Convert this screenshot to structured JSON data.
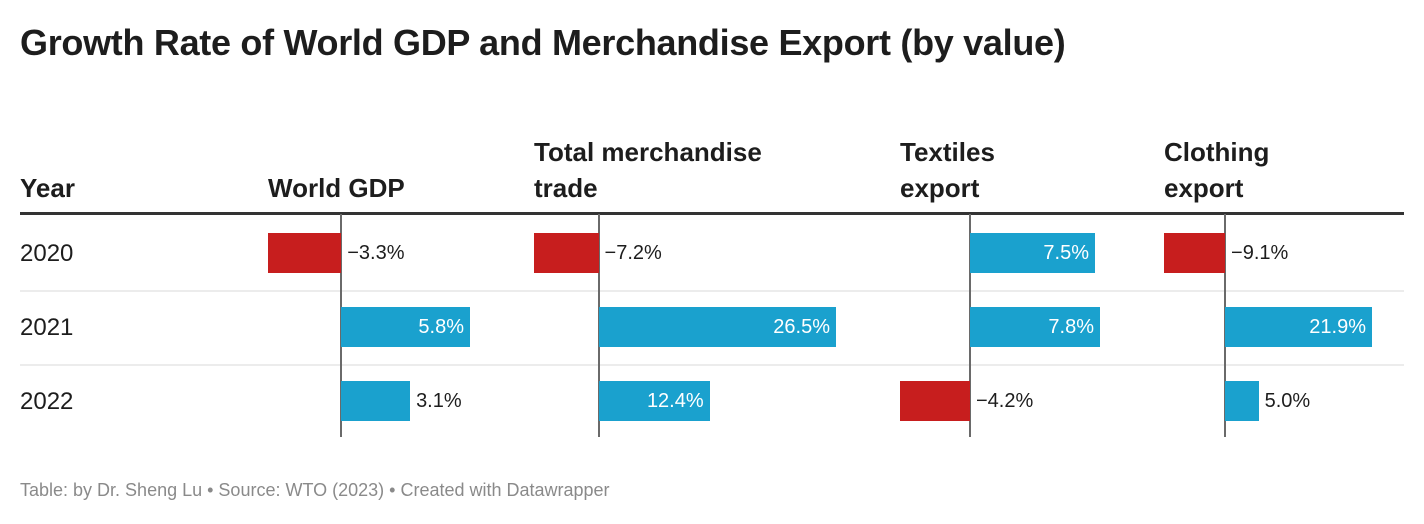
{
  "title": "Growth Rate of World GDP and Merchandise Export (by value)",
  "footer": "Table: by Dr. Sheng Lu • Source: WTO (2023) • Created with Datawrapper",
  "colors": {
    "positive": "#1aa1ce",
    "negative": "#c71e1e"
  },
  "chart_data": {
    "type": "table",
    "title": "Growth Rate of World GDP and Merchandise Export (by value)",
    "year_header": "Year",
    "years": [
      "2020",
      "2021",
      "2022"
    ],
    "columns": [
      {
        "name": "World GDP",
        "values": [
          -3.3,
          5.8,
          3.1
        ],
        "labels": [
          "−3.3%",
          "5.8%",
          "3.1%"
        ]
      },
      {
        "name": "Total merchandise trade",
        "values": [
          -7.2,
          26.5,
          12.4
        ],
        "labels": [
          "−7.2%",
          "26.5%",
          "12.4%"
        ]
      },
      {
        "name": "Textiles export",
        "values": [
          7.5,
          7.8,
          -4.2
        ],
        "labels": [
          "7.5%",
          "7.8%",
          "−4.2%"
        ]
      },
      {
        "name": "Clothing export",
        "values": [
          -9.1,
          21.9,
          5.0
        ],
        "labels": [
          "−9.1%",
          "21.9%",
          "5.0%"
        ]
      }
    ]
  }
}
